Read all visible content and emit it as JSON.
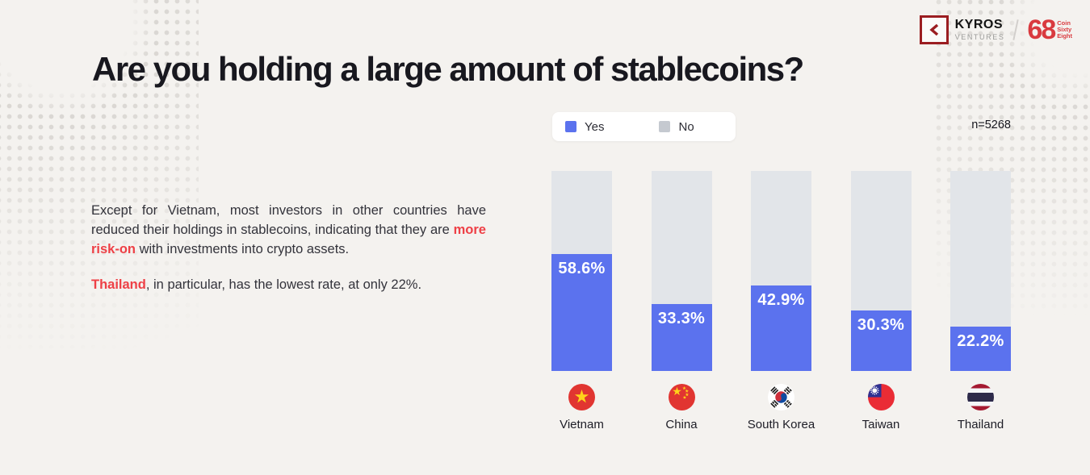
{
  "theme": {
    "background": "#f4f2ef",
    "accent_red": "#ee4046",
    "bar_yes_blue": "#5b72ee",
    "bar_no_gray": "#e2e5e9",
    "legend_no_swatch": "#c5c9d0",
    "title_color": "#18181f",
    "kyros_dark_red": "#9b1d21",
    "coin68_red": "#d93a3f"
  },
  "header": {
    "kyros_wordmark": "KYROS",
    "kyros_subtitle": "VENTURES",
    "coin68_number": "68",
    "coin68_word_1": "Coin",
    "coin68_word_2": "Sixty",
    "coin68_word_3": "Eight"
  },
  "title": "Are you holding a large amount of stablecoins?",
  "legend": {
    "yes_label": "Yes",
    "no_label": "No"
  },
  "sample_size": "n=5268",
  "commentary": {
    "p1_before": "Except for Vietnam, most investors in other countries have reduced their holdings in stablecoins, indicating that they are ",
    "p1_accent": "more risk-on",
    "p1_after": " with investments into crypto assets.",
    "p2_accent": "Thailand",
    "p2_after": ", in particular, has the lowest rate, at only 22%."
  },
  "chart_data": {
    "type": "bar",
    "subtype": "stacked-percentage-column",
    "title": "Are you holding a large amount of stablecoins?",
    "sample_label": "n=5268",
    "categories": [
      "Vietnam",
      "China",
      "South Korea",
      "Taiwan",
      "Thailand"
    ],
    "series": [
      {
        "name": "Yes",
        "color": "#5b72ee",
        "values": [
          58.6,
          33.3,
          42.9,
          30.3,
          22.2
        ]
      },
      {
        "name": "No",
        "color": "#e2e5e9",
        "values": [
          41.4,
          66.7,
          57.1,
          69.7,
          77.8
        ]
      }
    ],
    "value_labels": [
      "58.6%",
      "33.3%",
      "42.9%",
      "30.3%",
      "22.2%"
    ],
    "flag_icons": [
      "vietnam-flag-icon",
      "china-flag-icon",
      "south-korea-flag-icon",
      "taiwan-flag-icon",
      "thailand-flag-icon"
    ],
    "ylim": [
      0,
      100
    ],
    "grid": false,
    "legend_position": "top-left-above-chart"
  }
}
